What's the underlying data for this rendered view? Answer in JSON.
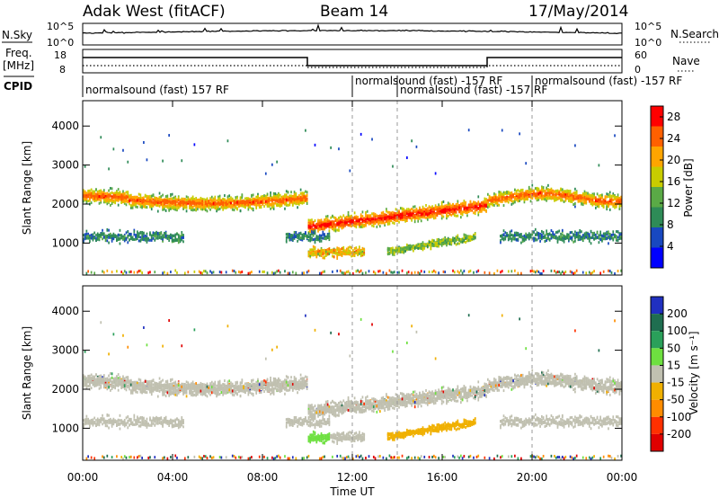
{
  "header": {
    "station": "Adak West (fitACF)",
    "beam": "Beam 14",
    "date": "17/May/2014"
  },
  "strips": {
    "nsky_label": "N.Sky",
    "nsearch_label": "N.Search",
    "nsky_ticks": [
      "10^5",
      "10^0"
    ],
    "nsearch_ticks": [
      "10^5",
      "10^0"
    ],
    "freq_label_top": "Freq.",
    "freq_label_bottom": "[MHz]",
    "freq_ticks": [
      "18",
      "8"
    ],
    "nave_label": "Nave",
    "nave_ticks": [
      "60",
      "0"
    ],
    "cpid_label": "CPID",
    "cpid_segments": [
      {
        "label": "normalsound (fast) 157 RF",
        "start": 0,
        "end": 12
      },
      {
        "label": "normalsound (fast) -157 RF",
        "start": 12,
        "end": 14
      },
      {
        "label": "normalsound (fast) -157 RF",
        "start": 14,
        "end": 20
      },
      {
        "label": "normalsound (fast) -157 RF",
        "start": 20,
        "end": 24
      }
    ]
  },
  "chart_data": [
    {
      "type": "heatmap",
      "name": "power",
      "ylabel": "Slant Range [km]",
      "ylim": [
        180,
        4650
      ],
      "yticks": [
        1000,
        2000,
        3000,
        4000
      ],
      "xlim": [
        0,
        24
      ],
      "colorbar_label": "Power [dB]",
      "colorbar_ticks": [
        4,
        8,
        12,
        16,
        20,
        24,
        28
      ],
      "colorbar_range": [
        0,
        30
      ]
    },
    {
      "type": "heatmap",
      "name": "velocity",
      "ylabel": "Slant Range [km]",
      "ylim": [
        180,
        4650
      ],
      "yticks": [
        1000,
        2000,
        3000,
        4000
      ],
      "xlim": [
        0,
        24
      ],
      "xlabel": "Time UT",
      "xticks": [
        "00:00",
        "04:00",
        "08:00",
        "12:00",
        "16:00",
        "20:00",
        "00:00"
      ],
      "colorbar_label": "Velocity [m s⁻¹]",
      "colorbar_ticks": [
        "200",
        "100",
        "50",
        "15",
        "-15",
        "-50",
        "-100",
        "-200"
      ]
    }
  ],
  "colors": {
    "power_scale": [
      "#0000ff",
      "#1848c0",
      "#2e8b57",
      "#5aaa46",
      "#c8cc00",
      "#ffa500",
      "#ff6000",
      "#ff0000"
    ],
    "velocity_scale": [
      "#2030c0",
      "#1f6e50",
      "#2aa05a",
      "#6ee040",
      "#c0c0b0",
      "#f0b000",
      "#ff8c00",
      "#ff3000",
      "#e00000"
    ]
  }
}
